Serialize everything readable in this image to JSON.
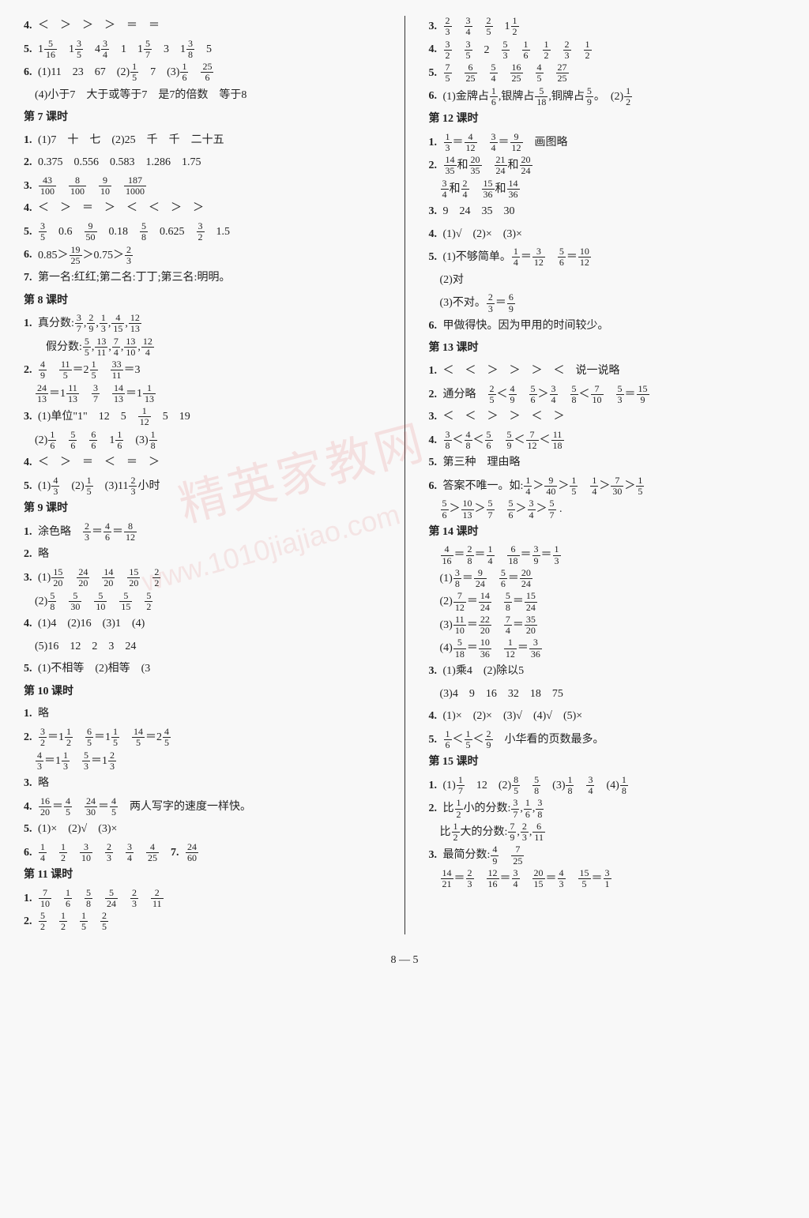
{
  "footer": "8 — 5",
  "watermark_main": "精英家教网",
  "watermark_url": "www.1010jiajiao.com",
  "left": {
    "l4": {
      "num": "4.",
      "text": "＜　＞　＞　＞　＝　＝"
    },
    "l5": {
      "num": "5.",
      "parts": [
        "1",
        "5",
        "16",
        "　1",
        "3",
        "5",
        "　4",
        "3",
        "4",
        "　1　1",
        "5",
        "7",
        "　3　1",
        "3",
        "8",
        "　5"
      ]
    },
    "l6": {
      "num": "6.",
      "p1": "(1)11　23　67　(2)",
      "f1n": "1",
      "f1d": "5",
      "p2": "　7　(3)",
      "f2n": "1",
      "f2d": "6",
      "sp": "　",
      "f3n": "25",
      "f3d": "6"
    },
    "l6b": {
      "text": "　(4)小于7　大于或等于7　是7的倍数　等于8"
    },
    "s7": "第 7 课时",
    "s7_1": {
      "num": "1.",
      "text": "(1)7　十　七　(2)25　千　千　二十五"
    },
    "s7_2": {
      "num": "2.",
      "text": "0.375　0.556　0.583　1.286　1.75"
    },
    "s7_3": {
      "num": "3.",
      "f1n": "43",
      "f1d": "100",
      "f2n": "8",
      "f2d": "100",
      "f3n": "9",
      "f3d": "10",
      "f4n": "187",
      "f4d": "1000"
    },
    "s7_4": {
      "num": "4.",
      "text": "＜　＞　＝　＞　＜　＜　＞　＞"
    },
    "s7_5": {
      "num": "5.",
      "f1n": "3",
      "f1d": "5",
      "t1": "　0.6　",
      "f2n": "9",
      "f2d": "50",
      "t2": "　0.18　",
      "f3n": "5",
      "f3d": "8",
      "t3": "　0.625　",
      "f4n": "3",
      "f4d": "2",
      "t4": "　1.5"
    },
    "s7_6": {
      "num": "6.",
      "t1": "0.85＞",
      "f1n": "19",
      "f1d": "25",
      "t2": "＞0.75＞",
      "f2n": "2",
      "f2d": "3"
    },
    "s7_7": {
      "num": "7.",
      "text": "第一名:红红;第二名:丁丁;第三名:明明。"
    },
    "s8": "第 8 课时",
    "s8_1": {
      "num": "1.",
      "t1": "真分数:",
      "f1n": "3",
      "f1d": "7",
      "f2n": "2",
      "f2d": "9",
      "f3n": "1",
      "f3d": "3",
      "f4n": "4",
      "f4d": "15",
      "f5n": "12",
      "f5d": "13"
    },
    "s8_1b": {
      "t1": "　　假分数:",
      "f1n": "5",
      "f1d": "5",
      "f2n": "13",
      "f2d": "11",
      "f3n": "7",
      "f3d": "4",
      "f4n": "13",
      "f4d": "10",
      "f5n": "12",
      "f5d": "4"
    },
    "s8_2": {
      "num": "2.",
      "f1n": "4",
      "f1d": "9",
      "sp": "　",
      "f2n": "11",
      "f2d": "5",
      "t1": "＝2",
      "f3n": "1",
      "f3d": "5",
      "sp2": "　",
      "f4n": "33",
      "f4d": "11",
      "t2": "＝3"
    },
    "s8_2b": {
      "sp": "　",
      "f1n": "24",
      "f1d": "13",
      "t1": "＝1",
      "f2n": "11",
      "f2d": "13",
      "sp2": "　",
      "f3n": "3",
      "f3d": "7",
      "sp3": "　",
      "f4n": "14",
      "f4d": "13",
      "t2": "＝1",
      "f5n": "1",
      "f5d": "13"
    },
    "s8_3": {
      "num": "3.",
      "t1": "(1)单位\"1\"　12　5　",
      "f1n": "1",
      "f1d": "12",
      "t2": "　5　19"
    },
    "s8_3b": {
      "t1": "　(2)",
      "f1n": "1",
      "f1d": "6",
      "sp": "　",
      "f2n": "5",
      "f2d": "6",
      "sp2": "　",
      "f3n": "6",
      "f3d": "6",
      "t2": "　1",
      "f4n": "1",
      "f4d": "6",
      "t3": "　(3)",
      "f5n": "1",
      "f5d": "8"
    },
    "s8_4": {
      "num": "4.",
      "text": "＜　＞　＝　＜　＝　＞"
    },
    "s8_5": {
      "num": "5.",
      "t1": "(1)",
      "f1n": "4",
      "f1d": "3",
      "t2": "　(2)",
      "f2n": "1",
      "f2d": "5",
      "t3": "　(3)11",
      "f3n": "2",
      "f3d": "3",
      "t4": "小时"
    },
    "s9": "第 9 课时",
    "s9_1": {
      "num": "1.",
      "t1": "涂色略　",
      "f1n": "2",
      "f1d": "3",
      "t2": "＝",
      "f2n": "4",
      "f2d": "6",
      "t3": "＝",
      "f3n": "8",
      "f3d": "12"
    },
    "s9_2": {
      "num": "2.",
      "text": "略"
    },
    "s9_3": {
      "num": "3.",
      "t1": "(1)",
      "f1n": "15",
      "f1d": "20",
      "f2n": "24",
      "f2d": "20",
      "f3n": "14",
      "f3d": "20",
      "f4n": "15",
      "f4d": "20",
      "f5n": "2",
      "f5d": "2"
    },
    "s9_3b": {
      "t1": "　(2)",
      "f1n": "5",
      "f1d": "8",
      "f2n": "5",
      "f2d": "30",
      "f3n": "5",
      "f3d": "10",
      "f4n": "5",
      "f4d": "15",
      "f5n": "5",
      "f5d": "2"
    },
    "s9_4": {
      "num": "4.",
      "text": "(1)4　(2)16　(3)1　(4)"
    },
    "s9_4b": {
      "text": "　(5)16　12　2　3　24"
    },
    "s9_5": {
      "num": "5.",
      "text": "(1)不相等　(2)相等　(3"
    },
    "s10": "第 10 课时",
    "s10_1": {
      "num": "1.",
      "text": "略"
    },
    "s10_2": {
      "num": "2.",
      "f1n": "3",
      "f1d": "2",
      "t1": "＝1",
      "f2n": "1",
      "f2d": "2",
      "sp": "　",
      "f3n": "6",
      "f3d": "5",
      "t2": "＝1",
      "f4n": "1",
      "f4d": "5",
      "sp2": "　",
      "f5n": "14",
      "f5d": "5",
      "t3": "＝2",
      "f6n": "4",
      "f6d": "5"
    },
    "s10_2b": {
      "sp": "　",
      "f1n": "4",
      "f1d": "3",
      "t1": "＝1",
      "f2n": "1",
      "f2d": "3",
      "sp2": "　",
      "f3n": "5",
      "f3d": "3",
      "t2": "＝1",
      "f4n": "2",
      "f4d": "3"
    },
    "s10_3": {
      "num": "3.",
      "text": "略"
    },
    "s10_4": {
      "num": "4.",
      "f1n": "16",
      "f1d": "20",
      "t1": "＝",
      "f2n": "4",
      "f2d": "5",
      "sp": "　",
      "f3n": "24",
      "f3d": "30",
      "t2": "＝",
      "f4n": "4",
      "f4d": "5",
      "t3": "　两人写字的速度一样快。"
    },
    "s10_5": {
      "num": "5.",
      "text": "(1)×　(2)√　(3)×"
    },
    "s10_6": {
      "num": "6.",
      "f1n": "1",
      "f1d": "4",
      "f2n": "1",
      "f2d": "2",
      "f3n": "3",
      "f3d": "10",
      "f4n": "2",
      "f4d": "3",
      "f5n": "3",
      "f5d": "4",
      "f6n": "4",
      "f6d": "25",
      "num7": "7.",
      "f7n": "24",
      "f7d": "60"
    },
    "s11": "第 11 课时",
    "s11_1": {
      "num": "1.",
      "f1n": "7",
      "f1d": "10",
      "f2n": "1",
      "f2d": "6",
      "f3n": "5",
      "f3d": "8",
      "f4n": "5",
      "f4d": "24",
      "f5n": "2",
      "f5d": "3",
      "f6n": "2",
      "f6d": "11"
    },
    "s11_2": {
      "num": "2.",
      "f1n": "5",
      "f1d": "2",
      "f2n": "1",
      "f2d": "2",
      "f3n": "1",
      "f3d": "5",
      "f4n": "2",
      "f4d": "5"
    }
  },
  "right": {
    "r3": {
      "num": "3.",
      "f1n": "2",
      "f1d": "3",
      "f2n": "3",
      "f2d": "4",
      "f3n": "2",
      "f3d": "5",
      "t1": "　1",
      "f4n": "1",
      "f4d": "2"
    },
    "r4": {
      "num": "4.",
      "f1n": "3",
      "f1d": "2",
      "f2n": "3",
      "f2d": "5",
      "t1": "　2　",
      "f3n": "5",
      "f3d": "3",
      "f4n": "1",
      "f4d": "6",
      "f5n": "1",
      "f5d": "2",
      "f6n": "2",
      "f6d": "3",
      "f7n": "1",
      "f7d": "2"
    },
    "r5": {
      "num": "5.",
      "f1n": "7",
      "f1d": "5",
      "f2n": "6",
      "f2d": "25",
      "f3n": "5",
      "f3d": "4",
      "f4n": "16",
      "f4d": "25",
      "f5n": "4",
      "f5d": "5",
      "f6n": "27",
      "f6d": "25"
    },
    "r6": {
      "num": "6.",
      "t1": "(1)金牌占",
      "f1n": "1",
      "f1d": "6",
      "t2": ",银牌占",
      "f2n": "5",
      "f2d": "18",
      "t3": ",铜牌占",
      "f3n": "5",
      "f3d": "9",
      "t4": "。　(2)",
      "f4n": "1",
      "f4d": "2"
    },
    "s12": "第 12 课时",
    "s12_1": {
      "num": "1.",
      "f1n": "1",
      "f1d": "3",
      "t1": "＝",
      "f2n": "4",
      "f2d": "12",
      "sp": "　",
      "f3n": "3",
      "f3d": "4",
      "t2": "＝",
      "f4n": "9",
      "f4d": "12",
      "t3": "　画图略"
    },
    "s12_2": {
      "num": "2.",
      "f1n": "14",
      "f1d": "35",
      "t1": "和",
      "f2n": "20",
      "f2d": "35",
      "sp": "　",
      "f3n": "21",
      "f3d": "24",
      "t2": "和",
      "f4n": "20",
      "f4d": "24"
    },
    "s12_2b": {
      "sp": "　",
      "f1n": "3",
      "f1d": "4",
      "t1": "和",
      "f2n": "2",
      "f2d": "4",
      "sp2": "　",
      "f3n": "15",
      "f3d": "36",
      "t2": "和",
      "f4n": "14",
      "f4d": "36"
    },
    "s12_3": {
      "num": "3.",
      "text": "9　24　35　30"
    },
    "s12_4": {
      "num": "4.",
      "text": "(1)√　(2)×　(3)×"
    },
    "s12_5": {
      "num": "5.",
      "t1": "(1)不够简单。",
      "f1n": "1",
      "f1d": "4",
      "t2": "＝",
      "f2n": "3",
      "f2d": "12",
      "sp": "　",
      "f3n": "5",
      "f3d": "6",
      "t3": "＝",
      "f4n": "10",
      "f4d": "12"
    },
    "s12_5b": {
      "text": "　(2)对"
    },
    "s12_5c": {
      "t1": "　(3)不对。",
      "f1n": "2",
      "f1d": "3",
      "t2": "＝",
      "f2n": "6",
      "f2d": "9"
    },
    "s12_6": {
      "num": "6.",
      "text": "甲做得快。因为甲用的时间较少。"
    },
    "s13": "第 13 课时",
    "s13_1": {
      "num": "1.",
      "text": "＜　＜　＞　＞　＞　＜　说一说略"
    },
    "s13_2": {
      "num": "2.",
      "t1": "通分略　",
      "f1n": "2",
      "f1d": "5",
      "t2": "＜",
      "f2n": "4",
      "f2d": "9",
      "sp": "　",
      "f3n": "5",
      "f3d": "6",
      "t3": "＞",
      "f4n": "3",
      "f4d": "4",
      "sp2": "　",
      "f5n": "5",
      "f5d": "8",
      "t4": "＜",
      "f6n": "7",
      "f6d": "10",
      "sp3": "　",
      "f7n": "5",
      "f7d": "3",
      "t5": "＝",
      "f8n": "15",
      "f8d": "9"
    },
    "s13_3": {
      "num": "3.",
      "text": "＜　＜　＞　＞　＜　＞"
    },
    "s13_4": {
      "num": "4.",
      "f1n": "3",
      "f1d": "8",
      "t1": "＜",
      "f2n": "4",
      "f2d": "8",
      "t2": "＜",
      "f3n": "5",
      "f3d": "6",
      "sp": "　",
      "f4n": "5",
      "f4d": "9",
      "t3": "＜",
      "f5n": "7",
      "f5d": "12",
      "t4": "＜",
      "f6n": "11",
      "f6d": "18"
    },
    "s13_5": {
      "num": "5.",
      "text": "第三种　理由略"
    },
    "s13_6": {
      "num": "6.",
      "t1": "答案不唯一。如:",
      "f1n": "1",
      "f1d": "4",
      "t2": "＞",
      "f2n": "9",
      "f2d": "40",
      "t3": "＞",
      "f3n": "1",
      "f3d": "5",
      "sp": "　",
      "f4n": "1",
      "f4d": "4",
      "t4": "＞",
      "f5n": "7",
      "f5d": "30",
      "t5": "＞",
      "f6n": "1",
      "f6d": "5"
    },
    "s13_6b": {
      "sp": "　",
      "f1n": "5",
      "f1d": "6",
      "t1": "＞",
      "f2n": "10",
      "f2d": "13",
      "t2": "＞",
      "f3n": "5",
      "f3d": "7",
      "sp2": "　",
      "f4n": "5",
      "f4d": "6",
      "t3": "＞",
      "f5n": "3",
      "f5d": "4",
      "t4": "＞",
      "f6n": "5",
      "f6d": "7",
      "t5": " ."
    },
    "s14": "第 14 课时",
    "s14_a": {
      "sp": "　",
      "f1n": "4",
      "f1d": "16",
      "t1": "＝",
      "f2n": "2",
      "f2d": "8",
      "t2": "＝",
      "f3n": "1",
      "f3d": "4",
      "sp2": "　",
      "f4n": "6",
      "f4d": "18",
      "t3": "＝",
      "f5n": "3",
      "f5d": "9",
      "t4": "＝",
      "f6n": "1",
      "f6d": "3"
    },
    "s14_1": {
      "t1": "　(1)",
      "f1n": "3",
      "f1d": "8",
      "t2": "＝",
      "f2n": "9",
      "f2d": "24",
      "sp": "　",
      "f3n": "5",
      "f3d": "6",
      "t3": "＝",
      "f4n": "20",
      "f4d": "24"
    },
    "s14_2": {
      "t1": "　(2)",
      "f1n": "7",
      "f1d": "12",
      "t2": "＝",
      "f2n": "14",
      "f2d": "24",
      "sp": "　",
      "f3n": "5",
      "f3d": "8",
      "t3": "＝",
      "f4n": "15",
      "f4d": "24"
    },
    "s14_3": {
      "t1": "　(3)",
      "f1n": "11",
      "f1d": "10",
      "t2": "＝",
      "f2n": "22",
      "f2d": "20",
      "sp": "　",
      "f3n": "7",
      "f3d": "4",
      "t3": "＝",
      "f4n": "35",
      "f4d": "20"
    },
    "s14_4": {
      "t1": "　(4)",
      "f1n": "5",
      "f1d": "18",
      "t2": "＝",
      "f2n": "10",
      "f2d": "36",
      "sp": "　",
      "f3n": "1",
      "f3d": "12",
      "t3": "＝",
      "f4n": "3",
      "f4d": "36"
    },
    "s14_3n": {
      "num": "3.",
      "text": "(1)乘4　(2)除以5"
    },
    "s14_3b": {
      "text": "　(3)4　9　16　32　18　75"
    },
    "s14_4n": {
      "num": "4.",
      "text": "(1)×　(2)×　(3)√　(4)√　(5)×"
    },
    "s14_5": {
      "num": "5.",
      "f1n": "1",
      "f1d": "6",
      "t1": "＜",
      "f2n": "1",
      "f2d": "5",
      "t2": "＜",
      "f3n": "2",
      "f3d": "9",
      "t3": "　小华看的页数最多。"
    },
    "s15": "第 15 课时",
    "s15_1": {
      "num": "1.",
      "t1": "(1)",
      "f1n": "1",
      "f1d": "7",
      "t2": "　12　(2)",
      "f2n": "8",
      "f2d": "5",
      "sp": "　",
      "f3n": "5",
      "f3d": "8",
      "t3": "　(3)",
      "f4n": "1",
      "f4d": "8",
      "sp2": "　",
      "f5n": "3",
      "f5d": "4",
      "t4": "　(4)",
      "f6n": "1",
      "f6d": "8"
    },
    "s15_2": {
      "num": "2.",
      "t1": "比",
      "f1n": "1",
      "f1d": "2",
      "t2": "小的分数:",
      "f2n": "3",
      "f2d": "7",
      "f3n": "1",
      "f3d": "6",
      "f4n": "3",
      "f4d": "8"
    },
    "s15_2b": {
      "t1": "　比",
      "f1n": "1",
      "f1d": "2",
      "t2": "大的分数:",
      "f2n": "7",
      "f2d": "9",
      "f3n": "2",
      "f3d": "3",
      "f4n": "6",
      "f4d": "11"
    },
    "s15_3": {
      "num": "3.",
      "t1": "最简分数:",
      "f1n": "4",
      "f1d": "9",
      "f2n": "7",
      "f2d": "25"
    },
    "s15_3b": {
      "sp": "　",
      "f1n": "14",
      "f1d": "21",
      "t1": "＝",
      "f2n": "2",
      "f2d": "3",
      "sp2": "　",
      "f3n": "12",
      "f3d": "16",
      "t2": "＝",
      "f4n": "3",
      "f4d": "4",
      "sp3": "　",
      "f5n": "20",
      "f5d": "15",
      "t3": "＝",
      "f6n": "4",
      "f6d": "3",
      "sp4": "　",
      "f7n": "15",
      "f7d": "5",
      "t4": "＝",
      "f8n": "3",
      "f8d": "1"
    }
  }
}
